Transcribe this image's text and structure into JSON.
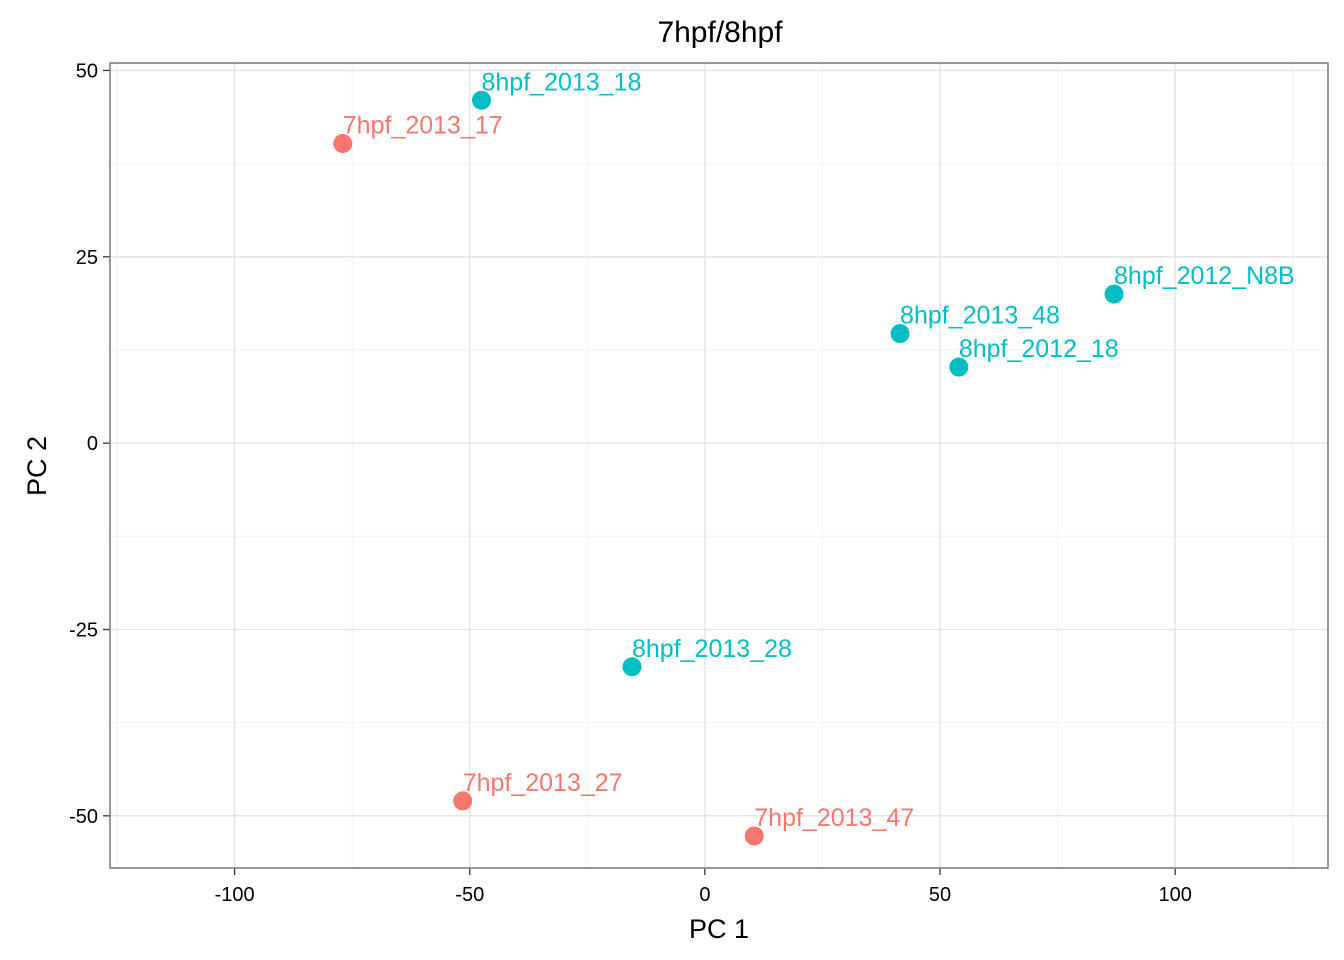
{
  "chart_data": {
    "type": "scatter",
    "title": "7hpf/8hpf",
    "xlabel": "PC 1",
    "ylabel": "PC 2",
    "xlim": [
      -126.5,
      132.5
    ],
    "ylim": [
      -57,
      51
    ],
    "x_ticks": [
      -100,
      -50,
      0,
      50,
      100
    ],
    "x_tick_labels": [
      "-100",
      "-50",
      "0",
      "50",
      "100"
    ],
    "y_ticks": [
      -50,
      -25,
      0,
      25,
      50
    ],
    "y_tick_labels": [
      "-50",
      "-25",
      "0",
      "25",
      "50"
    ],
    "grid": true,
    "legend": "none",
    "series": [
      {
        "color": "#F8766D",
        "points": [
          {
            "label": "7hpf_2013_17",
            "x": -77,
            "y": 40.2
          },
          {
            "label": "7hpf_2013_27",
            "x": -51.5,
            "y": -48
          },
          {
            "label": "7hpf_2013_47",
            "x": 10.5,
            "y": -52.7
          }
        ]
      },
      {
        "color": "#00BFC4",
        "points": [
          {
            "label": "8hpf_2013_18",
            "x": -47.5,
            "y": 46
          },
          {
            "label": "8hpf_2012_N8B",
            "x": 87,
            "y": 20
          },
          {
            "label": "8hpf_2013_48",
            "x": 41.5,
            "y": 14.7
          },
          {
            "label": "8hpf_2012_18",
            "x": 54,
            "y": 10.2
          },
          {
            "label": "8hpf_2013_28",
            "x": -15.5,
            "y": -30
          }
        ]
      }
    ]
  }
}
